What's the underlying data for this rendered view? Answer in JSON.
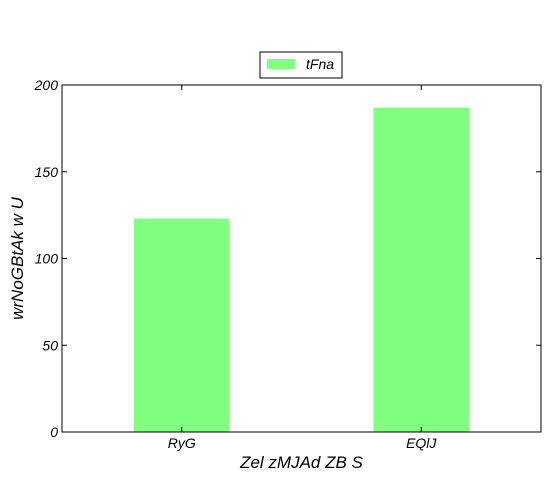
{
  "chart_data": {
    "type": "bar",
    "categories": [
      "RyG",
      "EQlJ"
    ],
    "series": [
      {
        "name": "tFna",
        "values": [
          123,
          187
        ]
      }
    ],
    "xlabel": "Zel zMJAd ZB S",
    "ylabel": "wrNoGBtAk  w U",
    "ylim": [
      0,
      200
    ],
    "yticks": [
      0,
      50,
      100,
      150,
      200
    ],
    "grid": false,
    "legend_position": "top-center",
    "bar_color": "#80ff80"
  }
}
